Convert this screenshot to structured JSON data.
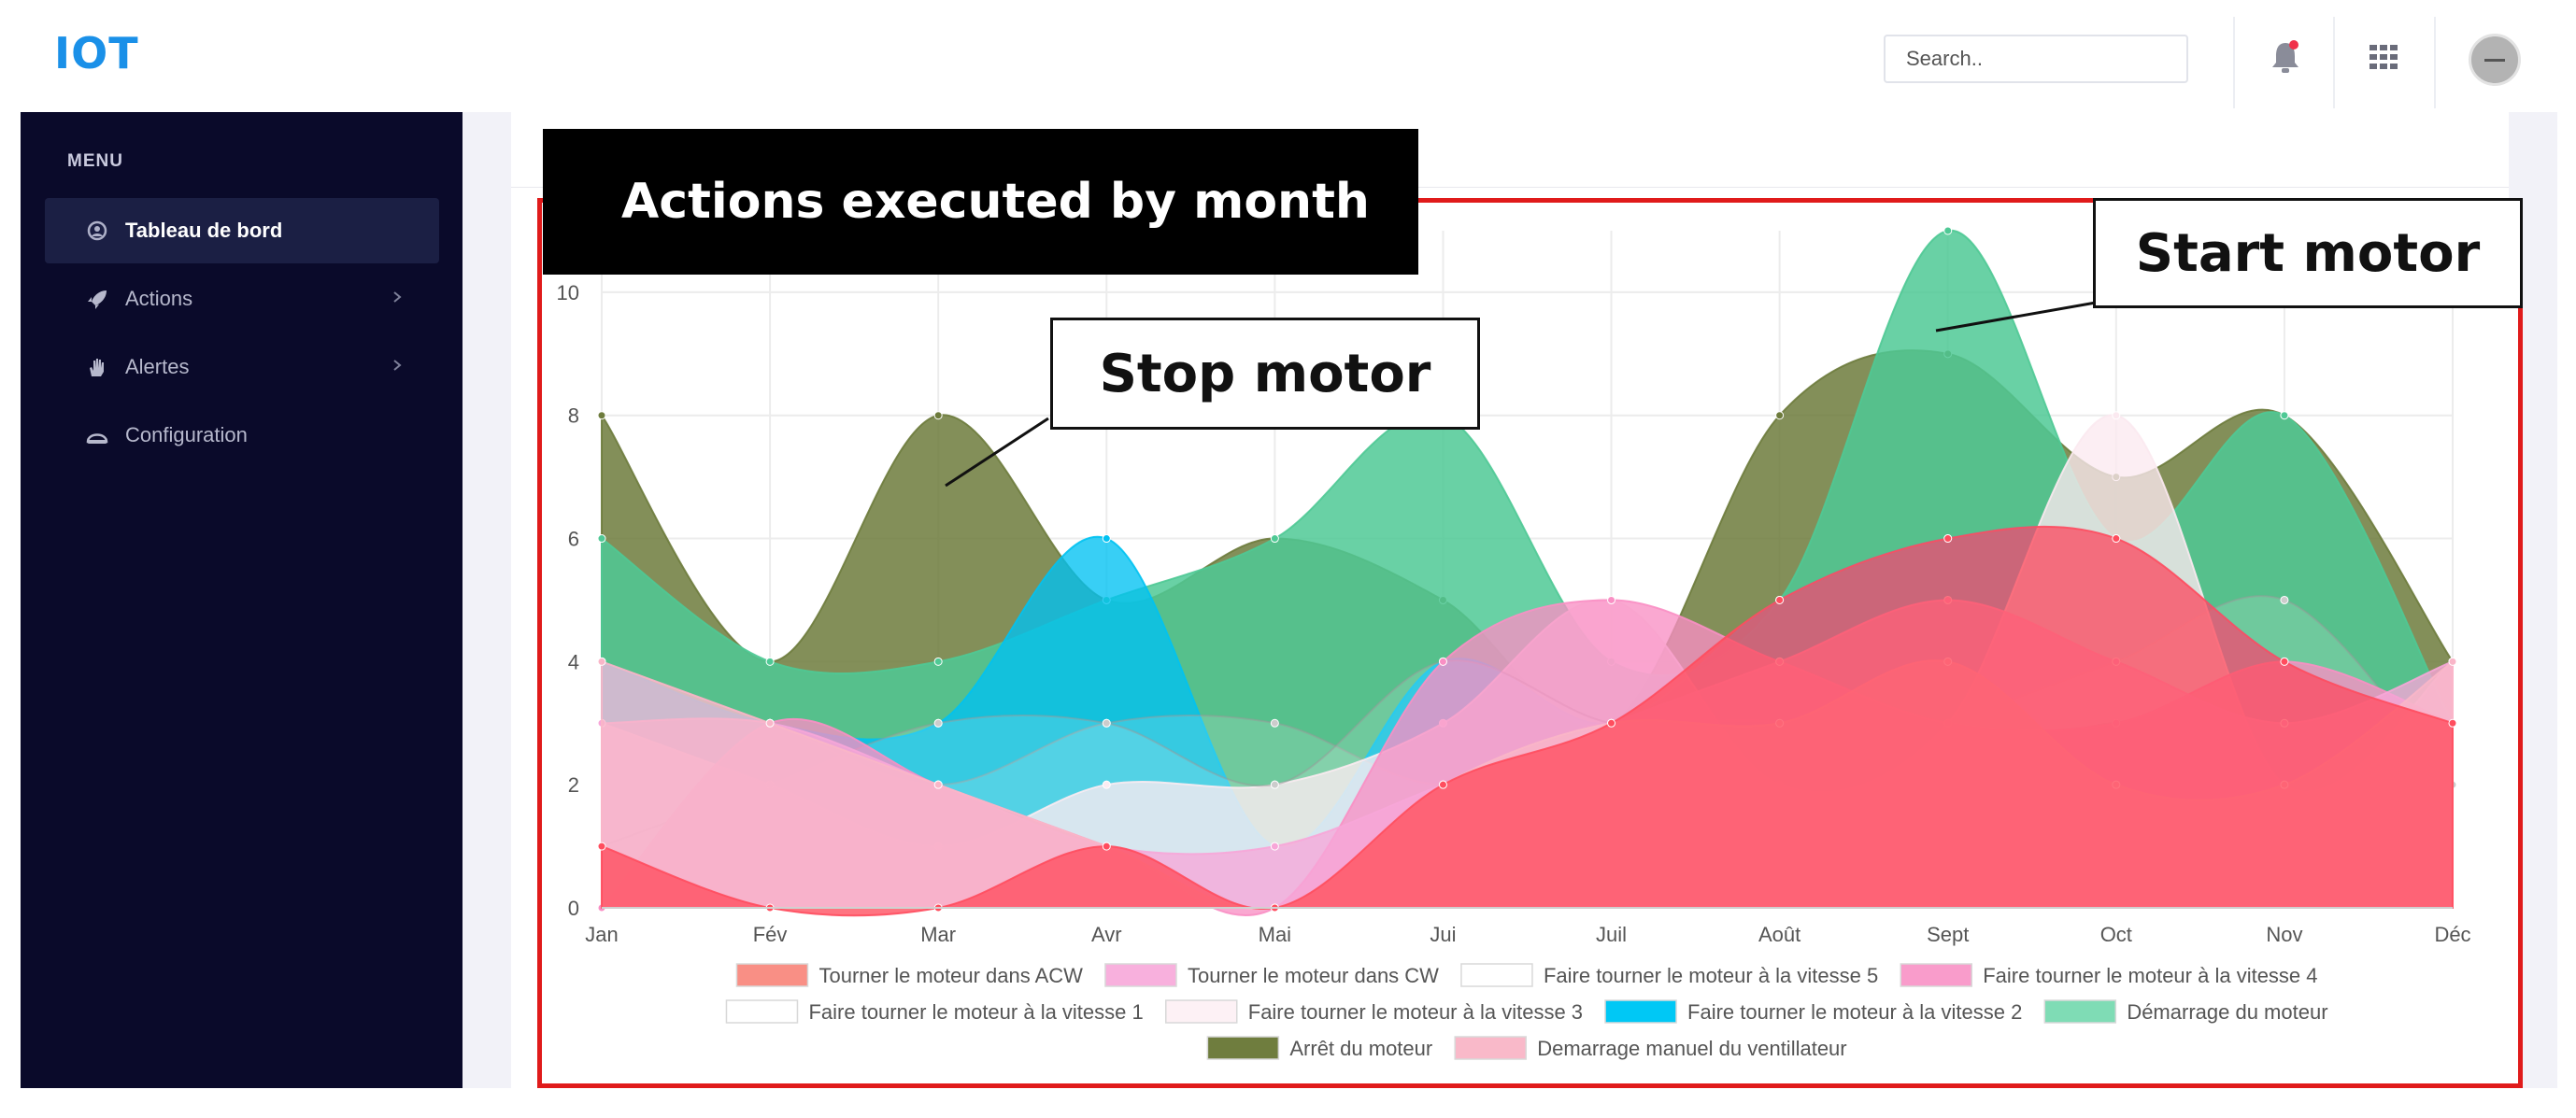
{
  "app": {
    "title": "IOT"
  },
  "header": {
    "search_placeholder": "Search.."
  },
  "sidebar": {
    "menu_label": "MENU",
    "items": [
      {
        "label": "Tableau de bord",
        "icon": "dashboard-icon"
      },
      {
        "label": "Actions",
        "icon": "rocket-icon"
      },
      {
        "label": "Alertes",
        "icon": "hand-icon"
      },
      {
        "label": "Configuration",
        "icon": "gauge-icon"
      }
    ]
  },
  "annotations": {
    "banner": "Actions executed by month",
    "stop_motor": "Stop motor",
    "start_motor": "Start motor"
  },
  "chart_data": {
    "type": "area",
    "categories": [
      "Jan",
      "Fév",
      "Mar",
      "Avr",
      "Mai",
      "Jui",
      "Juil",
      "Août",
      "Sept",
      "Oct",
      "Nov",
      "Déc"
    ],
    "ylim": [
      0,
      11
    ],
    "yticks": [
      0,
      2,
      4,
      6,
      8,
      10
    ],
    "grid": true,
    "legend_position": "bottom",
    "series": [
      {
        "name": "Arrêt du moteur",
        "color": "#6d7b3c",
        "values": [
          8,
          4,
          8,
          5,
          6,
          5,
          3,
          8,
          9,
          7,
          8,
          4
        ]
      },
      {
        "name": "Démarrage du moteur",
        "color": "#4fc995",
        "values": [
          6,
          4,
          4,
          5,
          6,
          8,
          4,
          5,
          11,
          6,
          8,
          3
        ]
      },
      {
        "name": "Faire tourner le moteur à la vitesse 2",
        "color": "#00c2f2",
        "values": [
          4,
          3,
          3,
          6,
          1,
          4,
          3,
          5,
          6,
          6,
          4,
          3
        ]
      },
      {
        "name": "Faire tourner le moteur à la vitesse 1",
        "color": "#ffffff",
        "values": [
          4,
          3,
          2,
          3,
          3,
          2,
          3,
          2,
          3,
          4,
          5,
          2
        ]
      },
      {
        "name": "Faire tourner le moteur à la vitesse 3",
        "color": "#fbe9f0",
        "values": [
          3,
          2,
          1,
          2,
          2,
          3,
          5,
          2,
          3,
          8,
          2,
          4
        ]
      },
      {
        "name": "Faire tourner le moteur à la vitesse 5",
        "color": "#ffffff",
        "values": [
          1,
          2,
          3,
          3,
          2,
          4,
          3,
          3,
          2,
          3,
          2,
          3
        ]
      },
      {
        "name": "Faire tourner le moteur à la vitesse 4",
        "color": "#f98fc4",
        "values": [
          0,
          3,
          2,
          1,
          0,
          4,
          5,
          4,
          3,
          3,
          4,
          3
        ]
      },
      {
        "name": "Tourner le moteur dans CW",
        "color": "#f7a6d8",
        "values": [
          3,
          3,
          2,
          1,
          1,
          2,
          3,
          4,
          5,
          4,
          3,
          4
        ]
      },
      {
        "name": "Demarrage manuel du ventillateur",
        "color": "#f9b6c8",
        "values": [
          4,
          3,
          2,
          1,
          0,
          2,
          3,
          3,
          4,
          2,
          2,
          4
        ]
      },
      {
        "name": "Tourner le moteur dans ACW",
        "color": "#ff4d5e",
        "values": [
          1,
          0,
          0,
          1,
          0,
          2,
          3,
          5,
          6,
          6,
          4,
          3
        ]
      }
    ],
    "legend_order": [
      "Tourner le moteur dans ACW",
      "Tourner le moteur dans CW",
      "Faire tourner le moteur à la vitesse 5",
      "Faire tourner le moteur à la vitesse 4",
      "Faire tourner le moteur à la vitesse 1",
      "Faire tourner le moteur à la vitesse 3",
      "Faire tourner le moteur à la vitesse 2",
      "Démarrage du moteur",
      "Arrêt du moteur",
      "Demarrage manuel du ventillateur"
    ],
    "legend_colors": {
      "Tourner le moteur dans ACW": "#f98f85",
      "Tourner le moteur dans CW": "#f8b0dd",
      "Faire tourner le moteur à la vitesse 5": "#ffffff",
      "Faire tourner le moteur à la vitesse 4": "#f99ccb",
      "Faire tourner le moteur à la vitesse 1": "#ffffff",
      "Faire tourner le moteur à la vitesse 3": "#fdf1f5",
      "Faire tourner le moteur à la vitesse 2": "#00c8f5",
      "Démarrage du moteur": "#7fdcb5",
      "Arrêt du moteur": "#6f7d3e",
      "Demarrage manuel du ventillateur": "#f9b9c9"
    }
  }
}
